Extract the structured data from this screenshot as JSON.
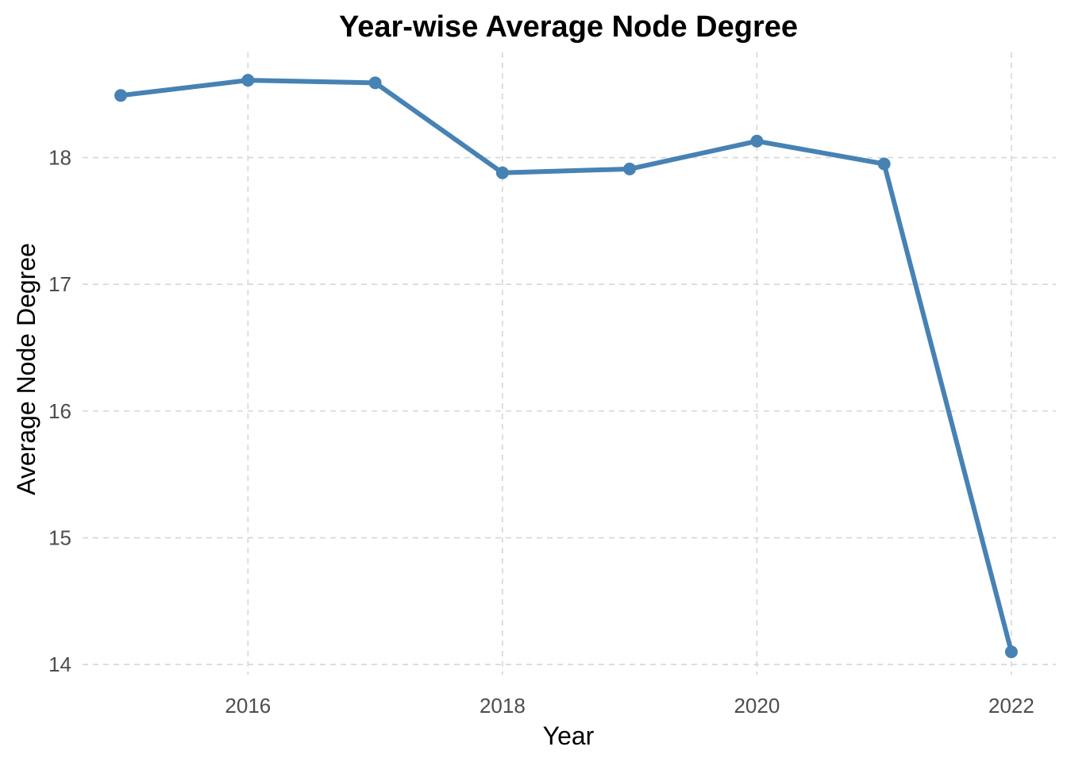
{
  "chart_data": {
    "type": "line",
    "title": "Year-wise Average Node Degree",
    "xlabel": "Year",
    "ylabel": "Average Node Degree",
    "x": [
      2015,
      2016,
      2017,
      2018,
      2019,
      2020,
      2021,
      2022
    ],
    "series": [
      {
        "values": [
          18.49,
          18.61,
          18.59,
          17.88,
          17.91,
          18.13,
          17.95,
          14.1
        ]
      }
    ],
    "xticks": [
      2016,
      2018,
      2020,
      2022
    ],
    "yticks": [
      14,
      15,
      16,
      17,
      18
    ],
    "xlim": [
      2014.7,
      2022.35
    ],
    "ylim": [
      13.92,
      18.83
    ],
    "grid": true,
    "legend": "none",
    "colors": {
      "series": "#4682B4",
      "grid": "#d6d6d6",
      "tick_text": "#4d4d4d"
    }
  }
}
